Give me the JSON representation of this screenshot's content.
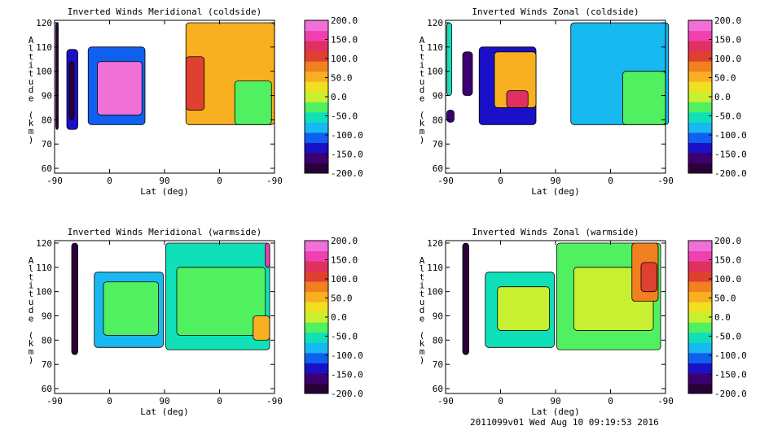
{
  "footer": "2011099v01 Wed Aug 10 09:19:53 2016",
  "colorbar": {
    "ticks": [
      "200.0",
      "150.0",
      "100.0",
      "50.0",
      "0.0",
      "-50.0",
      "-100.0",
      "-150.0",
      "-200.0"
    ],
    "range": [
      -200,
      200
    ],
    "colors": [
      "#2a0038",
      "#3d0070",
      "#1a10c8",
      "#1060f0",
      "#18b8f0",
      "#10e0b8",
      "#50f060",
      "#c8f030",
      "#f0e020",
      "#f8b020",
      "#f08020",
      "#e04030",
      "#e03060",
      "#f040b0",
      "#f070d8"
    ]
  },
  "chart_data": [
    {
      "type": "heatmap",
      "title": "Inverted Winds Meridional (coldside)",
      "xlabel": "Lat (deg)",
      "ylabel": "Altitude (km)",
      "xticks": [
        "-90",
        "0",
        "90",
        "0",
        "-90"
      ],
      "yticks": [
        "60",
        "70",
        "80",
        "90",
        "100",
        "110",
        "120"
      ],
      "ylim": [
        58,
        121
      ],
      "regions": [
        {
          "x": [
            -88,
            -84
          ],
          "alt": [
            76,
            120
          ],
          "value": -190
        },
        {
          "x": [
            -70,
            -52
          ],
          "alt": [
            76,
            109
          ],
          "value": -130
        },
        {
          "x": [
            -66,
            -58
          ],
          "alt": [
            80,
            104
          ],
          "value": -200
        },
        {
          "x": [
            -35,
            58
          ],
          "alt": [
            78,
            110
          ],
          "value": -100
        },
        {
          "x": [
            -20,
            53
          ],
          "alt": [
            82,
            104
          ],
          "value": 180
        },
        {
          "x": [
            125,
            270
          ],
          "alt": [
            78,
            120
          ],
          "value": 40
        },
        {
          "x": [
            125,
            155
          ],
          "alt": [
            84,
            106
          ],
          "value": 110
        },
        {
          "x": [
            205,
            265
          ],
          "alt": [
            78,
            96
          ],
          "value": -40
        }
      ]
    },
    {
      "type": "heatmap",
      "title": "Inverted Winds Zonal (coldside)",
      "xlabel": "Lat (deg)",
      "ylabel": "Altitude (km)",
      "xticks": [
        "-90",
        "0",
        "90",
        "0",
        "-90"
      ],
      "yticks": [
        "60",
        "70",
        "80",
        "90",
        "100",
        "110",
        "120"
      ],
      "ylim": [
        58,
        121
      ],
      "regions": [
        {
          "x": [
            -88,
            -80
          ],
          "alt": [
            90,
            120
          ],
          "value": -60
        },
        {
          "x": [
            -62,
            -46
          ],
          "alt": [
            90,
            108
          ],
          "value": -170
        },
        {
          "x": [
            -88,
            -76
          ],
          "alt": [
            79,
            84
          ],
          "value": -170
        },
        {
          "x": [
            -35,
            58
          ],
          "alt": [
            78,
            110
          ],
          "value": -140
        },
        {
          "x": [
            -10,
            58
          ],
          "alt": [
            85,
            108
          ],
          "value": 60
        },
        {
          "x": [
            10,
            45
          ],
          "alt": [
            85,
            92
          ],
          "value": 120
        },
        {
          "x": [
            115,
            275
          ],
          "alt": [
            78,
            120
          ],
          "value": -90
        },
        {
          "x": [
            200,
            270
          ],
          "alt": [
            78,
            100
          ],
          "value": -30
        }
      ]
    },
    {
      "type": "heatmap",
      "title": "Inverted Winds Meridional (warmside)",
      "xlabel": "Lat (deg)",
      "ylabel": "Altitude (km)",
      "xticks": [
        "-90",
        "0",
        "90",
        "0",
        "-90"
      ],
      "yticks": [
        "60",
        "70",
        "80",
        "90",
        "100",
        "110",
        "120"
      ],
      "ylim": [
        58,
        121
      ],
      "regions": [
        {
          "x": [
            -62,
            -52
          ],
          "alt": [
            74,
            120
          ],
          "value": -190
        },
        {
          "x": [
            -25,
            88
          ],
          "alt": [
            77,
            108
          ],
          "value": -90
        },
        {
          "x": [
            -10,
            80
          ],
          "alt": [
            82,
            104
          ],
          "value": -40
        },
        {
          "x": [
            92,
            262
          ],
          "alt": [
            76,
            120
          ],
          "value": -60
        },
        {
          "x": [
            110,
            255
          ],
          "alt": [
            82,
            110
          ],
          "value": -20
        },
        {
          "x": [
            235,
            262
          ],
          "alt": [
            80,
            90
          ],
          "value": 60
        },
        {
          "x": [
            255,
            262
          ],
          "alt": [
            110,
            120
          ],
          "value": 170
        }
      ]
    },
    {
      "type": "heatmap",
      "title": "Inverted Winds Zonal (warmside)",
      "xlabel": "Lat (deg)",
      "ylabel": "Altitude (km)",
      "xticks": [
        "-90",
        "0",
        "90",
        "0",
        "-90"
      ],
      "yticks": [
        "60",
        "70",
        "80",
        "90",
        "100",
        "110",
        "120"
      ],
      "ylim": [
        58,
        121
      ],
      "regions": [
        {
          "x": [
            -62,
            -52
          ],
          "alt": [
            74,
            120
          ],
          "value": -180
        },
        {
          "x": [
            -25,
            88
          ],
          "alt": [
            77,
            108
          ],
          "value": -60
        },
        {
          "x": [
            -5,
            80
          ],
          "alt": [
            84,
            102
          ],
          "value": -10
        },
        {
          "x": [
            92,
            262
          ],
          "alt": [
            76,
            120
          ],
          "value": -40
        },
        {
          "x": [
            120,
            250
          ],
          "alt": [
            84,
            110
          ],
          "value": 0
        },
        {
          "x": [
            215,
            258
          ],
          "alt": [
            96,
            120
          ],
          "value": 70
        },
        {
          "x": [
            230,
            256
          ],
          "alt": [
            100,
            112
          ],
          "value": 110
        }
      ]
    }
  ]
}
